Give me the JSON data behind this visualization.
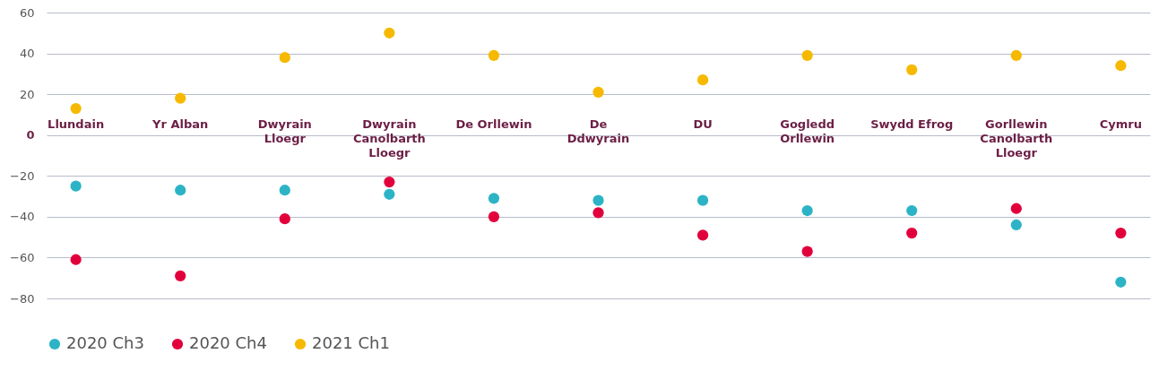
{
  "chart_data": {
    "type": "scatter",
    "categories": [
      "Llundain",
      "Yr Alban",
      "Dwyrain\nLloegr",
      "Dwyrain\nCanolbarth\nLloegr",
      "De Orllewin",
      "De\nDdwyrain",
      "DU",
      "Gogledd\nOrllewin",
      "Swydd Efrog",
      "Gorllewin\nCanolbarth\nLloegr",
      "Cymru"
    ],
    "series": [
      {
        "name": "2020 Ch3",
        "color": "#2cb4c6",
        "values": [
          -25,
          -27,
          -27,
          -29,
          -31,
          -32,
          -32,
          -37,
          -37,
          -44,
          -72
        ]
      },
      {
        "name": "2020 Ch4",
        "color": "#e2003c",
        "values": [
          -61,
          -69,
          -41,
          -23,
          -40,
          -38,
          -49,
          -57,
          -48,
          -36,
          -48
        ]
      },
      {
        "name": "2021 Ch1",
        "color": "#f6b900",
        "values": [
          13,
          18,
          38,
          50,
          39,
          21,
          27,
          39,
          32,
          39,
          34
        ]
      }
    ],
    "ylim": [
      -80,
      60
    ],
    "yticks": [
      -80,
      -60,
      -40,
      -20,
      0,
      20,
      40,
      60
    ],
    "grid": "y",
    "legend": "bottom",
    "marker": "circle"
  }
}
